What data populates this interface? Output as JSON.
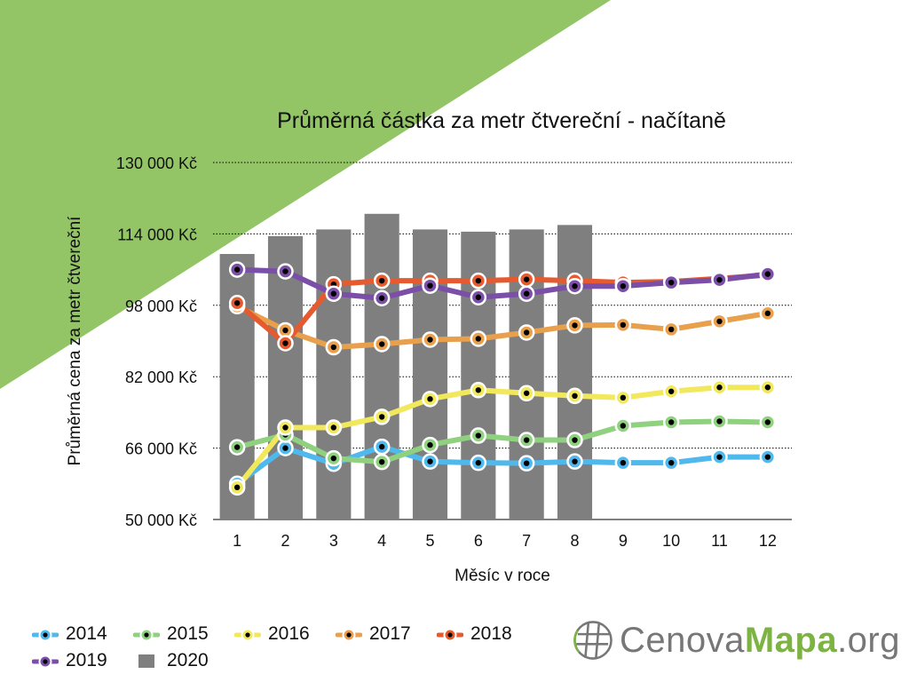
{
  "colors": {
    "background_triangle": "#93c566",
    "bar": "#7f7f7f",
    "grid": "#000000",
    "accent_logo": "#7cb342",
    "logo_gray": "#777777"
  },
  "logo": {
    "icon": "globe-grid-icon",
    "text_part1": "Cenova",
    "text_part2": "Mapa",
    "text_part3": ".org"
  },
  "chart_data": {
    "type": "line",
    "title": "Průměrná částka za metr čtvereční - načítaně",
    "xlabel": "Měsíc v roce",
    "ylabel": "Průměrná cena za metr čtvereční",
    "ylim": [
      50000,
      130000
    ],
    "yticks": [
      50000,
      66000,
      82000,
      98000,
      114000,
      130000
    ],
    "ytick_labels": [
      "50 000 Kč",
      "66 000 Kč",
      "82 000 Kč",
      "98 000 Kč",
      "114 000 Kč",
      "130 000 Kč"
    ],
    "categories": [
      "1",
      "2",
      "3",
      "4",
      "5",
      "6",
      "7",
      "8",
      "9",
      "10",
      "11",
      "12"
    ],
    "grid": "horizontal dotted",
    "legend_position": "bottom-left",
    "bars": {
      "name": "2020",
      "color": "#7f7f7f",
      "values": [
        109500,
        113500,
        115000,
        118500,
        115000,
        114500,
        115000,
        116000
      ]
    },
    "series": [
      {
        "name": "2014",
        "color": "#4fb8ec",
        "values": [
          58000,
          66000,
          62500,
          66300,
          63000,
          62700,
          62600,
          63000,
          62700,
          62700,
          64000,
          64000
        ]
      },
      {
        "name": "2015",
        "color": "#8fd17f",
        "values": [
          66200,
          69000,
          63700,
          62900,
          66700,
          68800,
          67800,
          67800,
          71000,
          71800,
          72000,
          71800
        ]
      },
      {
        "name": "2016",
        "color": "#f2e85c",
        "values": [
          57200,
          70600,
          70600,
          73000,
          77000,
          79000,
          78300,
          77700,
          77300,
          78700,
          79600,
          79600
        ]
      },
      {
        "name": "2017",
        "color": "#e9a04c",
        "values": [
          97800,
          92400,
          88600,
          89300,
          90300,
          90500,
          91900,
          93500,
          93600,
          92600,
          94400,
          96200
        ]
      },
      {
        "name": "2018",
        "color": "#e55b2f",
        "values": [
          98500,
          89500,
          102700,
          103500,
          103500,
          103500,
          103800,
          103500,
          103100,
          103300,
          104000,
          104800
        ]
      },
      {
        "name": "2019",
        "color": "#7b4fa8",
        "values": [
          106000,
          105600,
          100600,
          99600,
          102400,
          99800,
          100600,
          102300,
          102300,
          103100,
          103700,
          105000
        ]
      }
    ]
  }
}
